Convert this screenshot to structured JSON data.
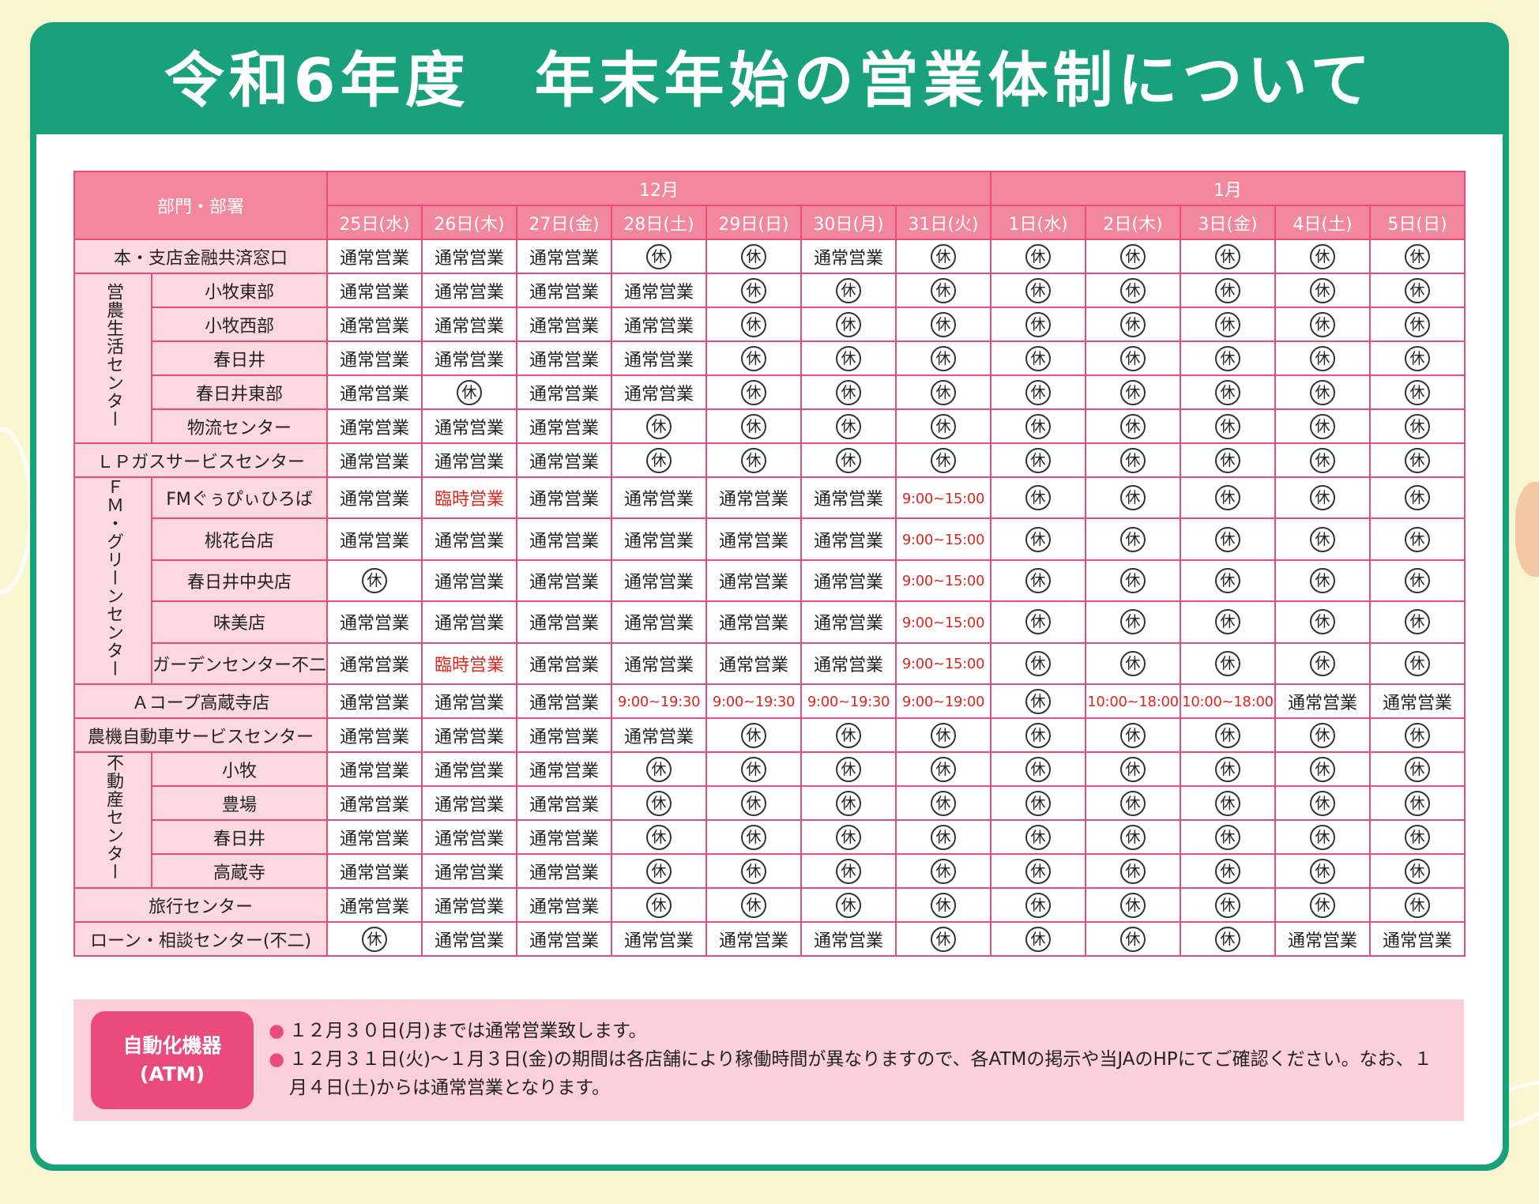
{
  "title": "令和6年度　年末年始の営業体制について",
  "header": {
    "dept_label": "部門・部署",
    "months": [
      {
        "label": "12月",
        "span": 7
      },
      {
        "label": "1月",
        "span": 5
      }
    ],
    "dates": [
      "25日(水)",
      "26日(木)",
      "27日(金)",
      "28日(土)",
      "29日(日)",
      "30日(月)",
      "31日(火)",
      "1日(水)",
      "2日(木)",
      "3日(金)",
      "4日(土)",
      "5日(日)"
    ]
  },
  "closed_mark": "休",
  "rows": [
    {
      "group": null,
      "dept": "本・支店金融共済窓口",
      "cells": [
        "通常営業",
        "通常営業",
        "通常営業",
        "休",
        "休",
        "通常営業",
        "休",
        "休",
        "休",
        "休",
        "休",
        "休"
      ]
    },
    {
      "group": "営農生活センター",
      "group_span": 5,
      "dept": "小牧東部",
      "cells": [
        "通常営業",
        "通常営業",
        "通常営業",
        "通常営業",
        "休",
        "休",
        "休",
        "休",
        "休",
        "休",
        "休",
        "休"
      ]
    },
    {
      "dept": "小牧西部",
      "cells": [
        "通常営業",
        "通常営業",
        "通常営業",
        "通常営業",
        "休",
        "休",
        "休",
        "休",
        "休",
        "休",
        "休",
        "休"
      ]
    },
    {
      "dept": "春日井",
      "cells": [
        "通常営業",
        "通常営業",
        "通常営業",
        "通常営業",
        "休",
        "休",
        "休",
        "休",
        "休",
        "休",
        "休",
        "休"
      ]
    },
    {
      "dept": "春日井東部",
      "cells": [
        "通常営業",
        "休",
        "通常営業",
        "通常営業",
        "休",
        "休",
        "休",
        "休",
        "休",
        "休",
        "休",
        "休"
      ]
    },
    {
      "dept": "物流センター",
      "cells": [
        "通常営業",
        "通常営業",
        "通常営業",
        "休",
        "休",
        "休",
        "休",
        "休",
        "休",
        "休",
        "休",
        "休"
      ]
    },
    {
      "group": null,
      "dept": "ＬＰガスサービスセンター",
      "cells": [
        "通常営業",
        "通常営業",
        "通常営業",
        "休",
        "休",
        "休",
        "休",
        "休",
        "休",
        "休",
        "休",
        "休"
      ]
    },
    {
      "group": "ＦＭ・グリーンセンター",
      "group_span": 5,
      "dept": "FMぐぅぴぃひろば",
      "cells": [
        "通常営業",
        "臨時営業",
        "通常営業",
        "通常営業",
        "通常営業",
        "通常営業",
        "9:00~15:00",
        "休",
        "休",
        "休",
        "休",
        "休"
      ]
    },
    {
      "dept": "桃花台店",
      "cells": [
        "通常営業",
        "通常営業",
        "通常営業",
        "通常営業",
        "通常営業",
        "通常営業",
        "9:00~15:00",
        "休",
        "休",
        "休",
        "休",
        "休"
      ]
    },
    {
      "dept": "春日井中央店",
      "cells": [
        "休",
        "通常営業",
        "通常営業",
        "通常営業",
        "通常営業",
        "通常営業",
        "9:00~15:00",
        "休",
        "休",
        "休",
        "休",
        "休"
      ]
    },
    {
      "dept": "味美店",
      "cells": [
        "通常営業",
        "通常営業",
        "通常営業",
        "通常営業",
        "通常営業",
        "通常営業",
        "9:00~15:00",
        "休",
        "休",
        "休",
        "休",
        "休"
      ]
    },
    {
      "dept": "ガーデンセンター不二",
      "cells": [
        "通常営業",
        "臨時営業",
        "通常営業",
        "通常営業",
        "通常営業",
        "通常営業",
        "9:00~15:00",
        "休",
        "休",
        "休",
        "休",
        "休"
      ]
    },
    {
      "group": null,
      "dept": "Ａコープ高蔵寺店",
      "cells": [
        "通常営業",
        "通常営業",
        "通常営業",
        "9:00~19:30",
        "9:00~19:30",
        "9:00~19:30",
        "9:00~19:00",
        "休",
        "10:00~18:00",
        "10:00~18:00",
        "通常営業",
        "通常営業"
      ]
    },
    {
      "group": null,
      "dept": "農機自動車サービスセンター",
      "cells": [
        "通常営業",
        "通常営業",
        "通常営業",
        "通常営業",
        "休",
        "休",
        "休",
        "休",
        "休",
        "休",
        "休",
        "休"
      ]
    },
    {
      "group": "不動産センター",
      "group_span": 4,
      "dept": "小牧",
      "cells": [
        "通常営業",
        "通常営業",
        "通常営業",
        "休",
        "休",
        "休",
        "休",
        "休",
        "休",
        "休",
        "休",
        "休"
      ]
    },
    {
      "dept": "豊場",
      "cells": [
        "通常営業",
        "通常営業",
        "通常営業",
        "休",
        "休",
        "休",
        "休",
        "休",
        "休",
        "休",
        "休",
        "休"
      ]
    },
    {
      "dept": "春日井",
      "cells": [
        "通常営業",
        "通常営業",
        "通常営業",
        "休",
        "休",
        "休",
        "休",
        "休",
        "休",
        "休",
        "休",
        "休"
      ]
    },
    {
      "dept": "高蔵寺",
      "cells": [
        "通常営業",
        "通常営業",
        "通常営業",
        "休",
        "休",
        "休",
        "休",
        "休",
        "休",
        "休",
        "休",
        "休"
      ]
    },
    {
      "group": null,
      "dept": "旅行センター",
      "cells": [
        "通常営業",
        "通常営業",
        "通常営業",
        "休",
        "休",
        "休",
        "休",
        "休",
        "休",
        "休",
        "休",
        "休"
      ]
    },
    {
      "group": null,
      "dept": "ローン・相談センター(不二)",
      "cells": [
        "休",
        "通常営業",
        "通常営業",
        "通常営業",
        "通常営業",
        "通常営業",
        "休",
        "休",
        "休",
        "休",
        "通常営業",
        "通常営業"
      ]
    }
  ],
  "atm": {
    "label_line1": "自動化機器",
    "label_line2": "(ATM)",
    "bullet": "●",
    "notes": [
      "１２月３０日(月)までは通常営業致します。",
      "１２月３１日(火)～１月３日(金)の期間は各店舗により稼働時間が異なりますので、各ATMの掲示や当JAのHPにてご確認ください。なお、１月４日(土)からは通常営業となります。"
    ]
  },
  "colors": {
    "frame_green": "#18a17a",
    "header_pink": "#f2879d",
    "dept_pink": "#fcd9df",
    "border_pink": "#e94c7c",
    "red_text": "#e0261e",
    "background": "#fbf6d2"
  }
}
